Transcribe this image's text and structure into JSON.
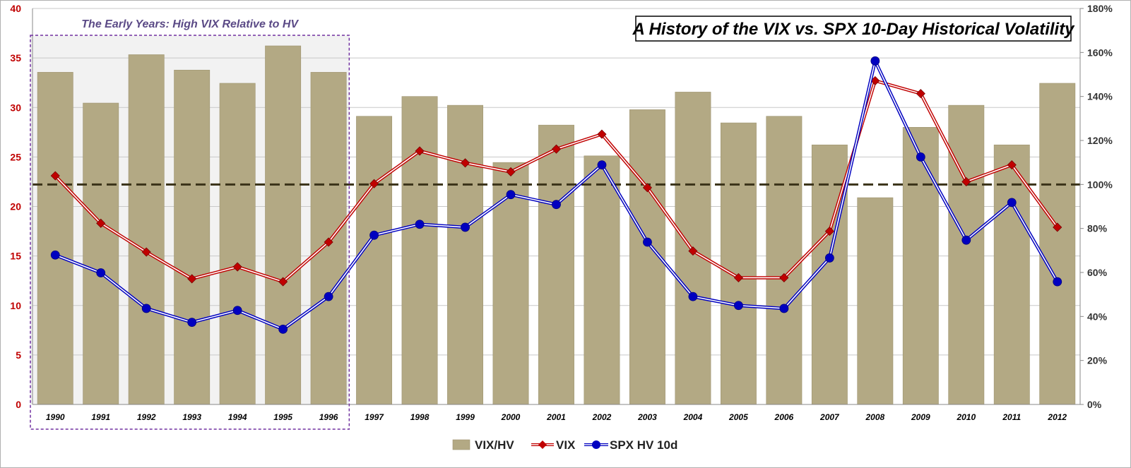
{
  "chart_data": {
    "type": "bar",
    "title": "A History of the VIX vs. SPX 10-Day Historical Volatility",
    "annotation": "The Early Years:  High VIX Relative to HV",
    "categories": [
      "1990",
      "1991",
      "1992",
      "1993",
      "1994",
      "1995",
      "1996",
      "1997",
      "1998",
      "1999",
      "2000",
      "2001",
      "2002",
      "2003",
      "2004",
      "2005",
      "2006",
      "2007",
      "2008",
      "2009",
      "2010",
      "2011",
      "2012"
    ],
    "series": [
      {
        "name": "VIX/HV",
        "type": "bar",
        "axis": "right",
        "color": "#b3a984",
        "values": [
          151,
          137,
          159,
          152,
          146,
          163,
          151,
          131,
          140,
          136,
          110,
          127,
          113,
          134,
          142,
          128,
          131,
          118,
          94,
          126,
          136,
          118,
          146
        ]
      },
      {
        "name": "VIX",
        "type": "line",
        "axis": "left",
        "color": "#c00000",
        "marker": "diamond",
        "values": [
          23.1,
          18.3,
          15.4,
          12.7,
          13.9,
          12.4,
          16.4,
          22.3,
          25.6,
          24.4,
          23.5,
          25.8,
          27.3,
          21.9,
          15.5,
          12.8,
          12.8,
          17.5,
          32.7,
          31.4,
          22.5,
          24.2,
          17.9
        ]
      },
      {
        "name": "SPX HV 10d",
        "type": "line",
        "axis": "left",
        "color": "#0000c0",
        "marker": "circle",
        "values": [
          15.1,
          13.3,
          9.7,
          8.3,
          9.5,
          7.6,
          10.9,
          17.1,
          18.2,
          17.9,
          21.2,
          20.2,
          24.2,
          16.4,
          10.9,
          10.0,
          9.7,
          14.8,
          34.7,
          25.0,
          16.6,
          20.4,
          12.4
        ]
      }
    ],
    "ylim_left": [
      0,
      40
    ],
    "ylim_right": [
      0,
      180
    ],
    "left_ticks": [
      "0",
      "5",
      "10",
      "15",
      "20",
      "25",
      "30",
      "35",
      "40"
    ],
    "right_ticks": [
      "0%",
      "20%",
      "40%",
      "60%",
      "80%",
      "100%",
      "120%",
      "140%",
      "160%",
      "180%"
    ],
    "reference_line": {
      "axis": "right",
      "value": 100,
      "style": "dashed"
    },
    "highlight_region": {
      "from": "1990",
      "to": "1996"
    },
    "grid": true,
    "legend_position": "bottom"
  }
}
